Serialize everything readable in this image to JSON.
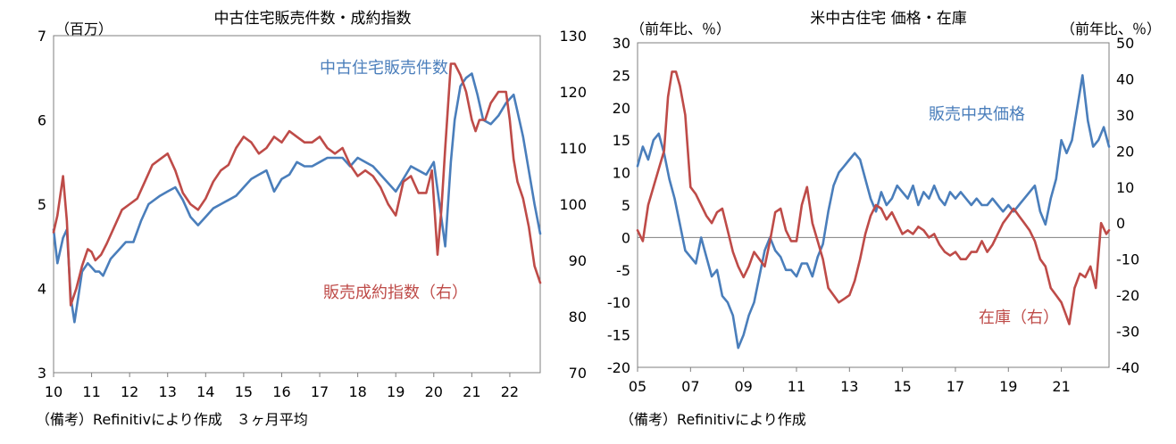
{
  "colors": {
    "blue": "#4a7ebb",
    "red": "#be4b48",
    "axis": "#7f7f7f",
    "zero": "#7f7f7f"
  },
  "left": {
    "note": "（備考）Refinitivにより作成　３ヶ月平均"
  },
  "right": {
    "note": "（備考）Refinitivにより作成"
  },
  "chart_data": [
    {
      "type": "line",
      "title": "中古住宅販売件数・成約指数",
      "y_left_unit": "（百万）",
      "y_right_unit": "",
      "ylim_left": [
        3,
        7
      ],
      "ylim_right": [
        70,
        130
      ],
      "y_left_ticks": [
        "3",
        "4",
        "5",
        "6",
        "7"
      ],
      "y_right_ticks": [
        "70",
        "80",
        "90",
        "100",
        "110",
        "120",
        "130"
      ],
      "x_ticks": [
        "10",
        "11",
        "12",
        "13",
        "14",
        "15",
        "16",
        "17",
        "18",
        "19",
        "20",
        "21",
        "22"
      ],
      "x_range": [
        2010.0,
        2022.8
      ],
      "grid": false,
      "series": [
        {
          "name": "中古住宅販売件数",
          "axis": "left",
          "color": "#4a7ebb",
          "x": [
            2010.0,
            2010.1,
            2010.25,
            2010.35,
            2010.45,
            2010.55,
            2010.65,
            2010.75,
            2010.9,
            2011.0,
            2011.1,
            2011.2,
            2011.3,
            2011.5,
            2011.7,
            2011.9,
            2012.1,
            2012.3,
            2012.5,
            2012.8,
            2013.0,
            2013.2,
            2013.4,
            2013.6,
            2013.8,
            2014.0,
            2014.2,
            2014.4,
            2014.6,
            2014.8,
            2015.0,
            2015.2,
            2015.4,
            2015.6,
            2015.8,
            2016.0,
            2016.2,
            2016.4,
            2016.6,
            2016.8,
            2017.0,
            2017.2,
            2017.4,
            2017.6,
            2017.8,
            2018.0,
            2018.2,
            2018.4,
            2018.6,
            2018.8,
            2019.0,
            2019.2,
            2019.4,
            2019.6,
            2019.8,
            2020.0,
            2020.15,
            2020.3,
            2020.45,
            2020.55,
            2020.7,
            2020.85,
            2021.0,
            2021.15,
            2021.3,
            2021.5,
            2021.7,
            2021.9,
            2022.0,
            2022.1,
            2022.2,
            2022.35,
            2022.5,
            2022.65,
            2022.8
          ],
          "y": [
            4.7,
            4.3,
            4.6,
            4.7,
            3.9,
            3.6,
            3.9,
            4.2,
            4.3,
            4.25,
            4.2,
            4.2,
            4.15,
            4.35,
            4.45,
            4.55,
            4.55,
            4.8,
            5.0,
            5.1,
            5.15,
            5.2,
            5.05,
            4.85,
            4.75,
            4.85,
            4.95,
            5.0,
            5.05,
            5.1,
            5.2,
            5.3,
            5.35,
            5.4,
            5.15,
            5.3,
            5.35,
            5.5,
            5.45,
            5.45,
            5.5,
            5.55,
            5.55,
            5.55,
            5.45,
            5.55,
            5.5,
            5.45,
            5.35,
            5.25,
            5.15,
            5.3,
            5.45,
            5.4,
            5.35,
            5.5,
            5.0,
            4.5,
            5.5,
            6.0,
            6.4,
            6.5,
            6.55,
            6.3,
            6.0,
            5.95,
            6.05,
            6.2,
            6.25,
            6.3,
            6.1,
            5.8,
            5.4,
            5.0,
            4.65
          ]
        },
        {
          "name": "販売成約指数（右）",
          "axis": "right",
          "color": "#be4b48",
          "x": [
            2010.0,
            2010.1,
            2010.25,
            2010.35,
            2010.45,
            2010.6,
            2010.75,
            2010.9,
            2011.0,
            2011.1,
            2011.25,
            2011.4,
            2011.6,
            2011.8,
            2012.0,
            2012.2,
            2012.4,
            2012.6,
            2012.8,
            2013.0,
            2013.2,
            2013.4,
            2013.6,
            2013.8,
            2014.0,
            2014.2,
            2014.4,
            2014.6,
            2014.8,
            2015.0,
            2015.2,
            2015.4,
            2015.6,
            2015.8,
            2016.0,
            2016.2,
            2016.4,
            2016.6,
            2016.8,
            2017.0,
            2017.2,
            2017.4,
            2017.6,
            2017.8,
            2018.0,
            2018.2,
            2018.4,
            2018.6,
            2018.8,
            2019.0,
            2019.2,
            2019.4,
            2019.6,
            2019.8,
            2019.95,
            2020.1,
            2020.2,
            2020.3,
            2020.45,
            2020.55,
            2020.7,
            2020.85,
            2021.0,
            2021.1,
            2021.2,
            2021.35,
            2021.5,
            2021.7,
            2021.9,
            2022.0,
            2022.1,
            2022.2,
            2022.35,
            2022.5,
            2022.65,
            2022.8
          ],
          "y": [
            95,
            98,
            105,
            97,
            82,
            85,
            89,
            92,
            91.5,
            90,
            91,
            93,
            96,
            99,
            100,
            101,
            104,
            107,
            108,
            109,
            106,
            102,
            100,
            99,
            101,
            104,
            106,
            107,
            110,
            112,
            111,
            109,
            110,
            112,
            111,
            113,
            112,
            111,
            111,
            112,
            110,
            109,
            110,
            107,
            105,
            106,
            105,
            103,
            100,
            98,
            104,
            105,
            102,
            102,
            106,
            91,
            99,
            110,
            125,
            125,
            123,
            120,
            115,
            113,
            115,
            115,
            118,
            120,
            120,
            115,
            108,
            104,
            101,
            96,
            89,
            86
          ]
        }
      ],
      "labels": [
        {
          "text": "中古住宅販売件数",
          "series": 0
        },
        {
          "text": "販売成約指数（右）",
          "series": 1
        }
      ]
    },
    {
      "type": "line",
      "title": "米中古住宅 価格・在庫",
      "y_left_unit": "（前年比、％）",
      "y_right_unit": "（前年比、％）",
      "ylim_left": [
        -20,
        30
      ],
      "ylim_right": [
        -40,
        50
      ],
      "y_left_ticks": [
        "-20",
        "-15",
        "-10",
        "-5",
        "0",
        "5",
        "10",
        "15",
        "20",
        "25",
        "30"
      ],
      "y_right_ticks": [
        "-40",
        "-30",
        "-20",
        "-10",
        "0",
        "10",
        "20",
        "30",
        "40",
        "50"
      ],
      "x_ticks": [
        "05",
        "07",
        "09",
        "11",
        "13",
        "15",
        "17",
        "19",
        "21"
      ],
      "x_range": [
        2005.0,
        2022.8
      ],
      "zero_line": 0,
      "grid": false,
      "series": [
        {
          "name": "販売中央価格",
          "axis": "left",
          "color": "#4a7ebb",
          "x": [
            2005.0,
            2005.2,
            2005.4,
            2005.6,
            2005.8,
            2006.0,
            2006.2,
            2006.4,
            2006.6,
            2006.8,
            2007.0,
            2007.2,
            2007.4,
            2007.6,
            2007.8,
            2008.0,
            2008.2,
            2008.4,
            2008.6,
            2008.8,
            2009.0,
            2009.2,
            2009.4,
            2009.6,
            2009.8,
            2010.0,
            2010.2,
            2010.4,
            2010.6,
            2010.8,
            2011.0,
            2011.2,
            2011.4,
            2011.6,
            2011.8,
            2012.0,
            2012.2,
            2012.4,
            2012.6,
            2012.8,
            2013.0,
            2013.2,
            2013.4,
            2013.6,
            2013.8,
            2014.0,
            2014.2,
            2014.4,
            2014.6,
            2014.8,
            2015.0,
            2015.2,
            2015.4,
            2015.6,
            2015.8,
            2016.0,
            2016.2,
            2016.4,
            2016.6,
            2016.8,
            2017.0,
            2017.2,
            2017.4,
            2017.6,
            2017.8,
            2018.0,
            2018.2,
            2018.4,
            2018.6,
            2018.8,
            2019.0,
            2019.2,
            2019.4,
            2019.6,
            2019.8,
            2020.0,
            2020.2,
            2020.4,
            2020.6,
            2020.8,
            2021.0,
            2021.2,
            2021.4,
            2021.6,
            2021.8,
            2022.0,
            2022.2,
            2022.4,
            2022.6,
            2022.8
          ],
          "y": [
            11,
            14,
            12,
            15,
            16,
            13,
            9,
            6,
            2,
            -2,
            -3,
            -4,
            0,
            -3,
            -6,
            -5,
            -9,
            -10,
            -12,
            -17,
            -15,
            -12,
            -10,
            -6,
            -2,
            0,
            -2,
            -3,
            -5,
            -5,
            -6,
            -4,
            -4,
            -6,
            -3,
            -1,
            4,
            8,
            10,
            11,
            12,
            13,
            12,
            9,
            6,
            4,
            7,
            5,
            6,
            8,
            7,
            6,
            8,
            5,
            7,
            6,
            8,
            6,
            5,
            7,
            6,
            7,
            6,
            5,
            6,
            5,
            5,
            6,
            5,
            4,
            5,
            4,
            5,
            6,
            7,
            8,
            4,
            2,
            6,
            9,
            15,
            13,
            15,
            20,
            25,
            18,
            14,
            15,
            17,
            14
          ]
        },
        {
          "name": "在庫（右）",
          "axis": "right",
          "color": "#be4b48",
          "x": [
            2005.0,
            2005.2,
            2005.4,
            2005.6,
            2005.8,
            2006.0,
            2006.15,
            2006.3,
            2006.45,
            2006.6,
            2006.8,
            2007.0,
            2007.2,
            2007.4,
            2007.6,
            2007.8,
            2008.0,
            2008.2,
            2008.4,
            2008.6,
            2008.8,
            2009.0,
            2009.2,
            2009.4,
            2009.6,
            2009.8,
            2010.0,
            2010.2,
            2010.4,
            2010.6,
            2010.8,
            2011.0,
            2011.2,
            2011.4,
            2011.6,
            2011.8,
            2012.0,
            2012.2,
            2012.4,
            2012.6,
            2012.8,
            2013.0,
            2013.2,
            2013.4,
            2013.6,
            2013.8,
            2014.0,
            2014.2,
            2014.4,
            2014.6,
            2014.8,
            2015.0,
            2015.2,
            2015.4,
            2015.6,
            2015.8,
            2016.0,
            2016.2,
            2016.4,
            2016.6,
            2016.8,
            2017.0,
            2017.2,
            2017.4,
            2017.6,
            2017.8,
            2018.0,
            2018.2,
            2018.4,
            2018.6,
            2018.8,
            2019.0,
            2019.2,
            2019.4,
            2019.6,
            2019.8,
            2020.0,
            2020.2,
            2020.4,
            2020.6,
            2020.8,
            2021.0,
            2021.15,
            2021.3,
            2021.5,
            2021.7,
            2021.9,
            2022.1,
            2022.3,
            2022.5,
            2022.7,
            2022.8
          ],
          "y": [
            -2,
            -5,
            5,
            10,
            15,
            20,
            35,
            42,
            42,
            38,
            30,
            10,
            8,
            5,
            2,
            0,
            3,
            4,
            -2,
            -8,
            -12,
            -15,
            -12,
            -8,
            -10,
            -12,
            -5,
            3,
            4,
            -2,
            -5,
            -5,
            5,
            10,
            0,
            -5,
            -10,
            -18,
            -20,
            -22,
            -21,
            -20,
            -16,
            -10,
            -3,
            2,
            5,
            4,
            1,
            3,
            0,
            -3,
            -2,
            -3,
            -1,
            -2,
            -4,
            -3,
            -6,
            -8,
            -9,
            -8,
            -10,
            -10,
            -8,
            -8,
            -5,
            -8,
            -6,
            -3,
            0,
            2,
            4,
            2,
            0,
            -2,
            -5,
            -10,
            -12,
            -18,
            -20,
            -22,
            -25,
            -28,
            -18,
            -14,
            -15,
            -12,
            -18,
            0,
            -3,
            -2
          ]
        }
      ],
      "labels": [
        {
          "text": "販売中央価格",
          "series": 0
        },
        {
          "text": "在庫（右）",
          "series": 1
        }
      ]
    }
  ]
}
